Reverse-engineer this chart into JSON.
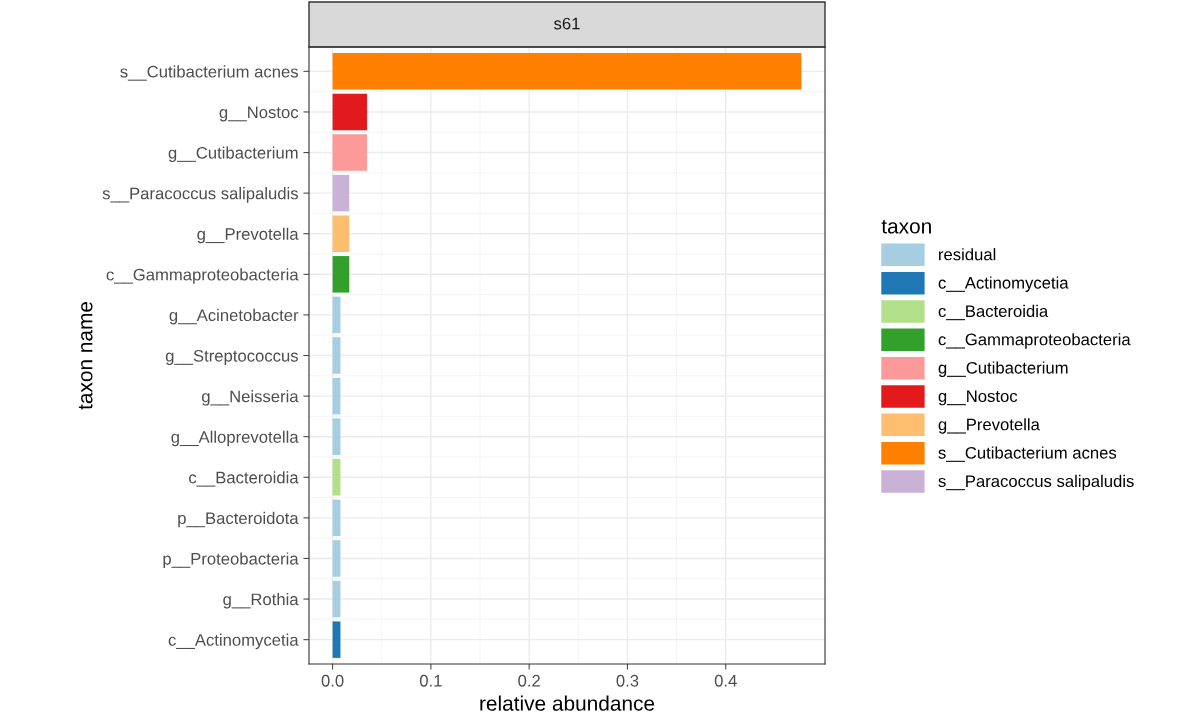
{
  "chart_data": {
    "type": "bar",
    "orientation": "horizontal",
    "title": "s61",
    "xlabel": "relative abundance",
    "ylabel": "taxon name",
    "legend_title": "taxon",
    "legend": "right",
    "grid": true,
    "categories": [
      "s__Cutibacterium acnes",
      "g__Nostoc",
      "g__Cutibacterium",
      "s__Paracoccus salipaludis",
      "g__Prevotella",
      "c__Gammaproteobacteria",
      "g__Acinetobacter",
      "g__Streptococcus",
      "g__Neisseria",
      "g__Alloprevotella",
      "c__Bacteroidia",
      "p__Bacteroidota",
      "p__Proteobacteria",
      "g__Rothia",
      "c__Actinomycetia"
    ],
    "xlim": [
      -0.024,
      0.501
    ],
    "xticks": [
      {
        "value": 0,
        "label": "0.0"
      },
      0.1,
      0.2,
      0.3,
      0.4
    ],
    "series": [
      {
        "name": "residual",
        "color": "#a6cee3",
        "values": [
          null,
          null,
          null,
          null,
          null,
          null,
          0.008,
          0.008,
          0.008,
          0.008,
          null,
          0.008,
          0.008,
          0.008,
          null
        ]
      },
      {
        "name": "c__Actinomycetia",
        "color": "#1f78b4",
        "values": [
          null,
          null,
          null,
          null,
          null,
          null,
          null,
          null,
          null,
          null,
          null,
          null,
          null,
          null,
          0.008
        ]
      },
      {
        "name": "c__Bacteroidia",
        "color": "#b2df8a",
        "values": [
          null,
          null,
          null,
          null,
          null,
          null,
          null,
          null,
          null,
          null,
          0.008,
          null,
          null,
          null,
          null
        ]
      },
      {
        "name": "c__Gammaproteobacteria",
        "color": "#33a02c",
        "values": [
          null,
          null,
          null,
          null,
          null,
          0.017,
          null,
          null,
          null,
          null,
          null,
          null,
          null,
          null,
          null
        ]
      },
      {
        "name": "g__Cutibacterium",
        "color": "#fb9a99",
        "values": [
          null,
          null,
          0.035,
          null,
          null,
          null,
          null,
          null,
          null,
          null,
          null,
          null,
          null,
          null,
          null
        ]
      },
      {
        "name": "g__Nostoc",
        "color": "#e31a1c",
        "values": [
          null,
          0.035,
          null,
          null,
          null,
          null,
          null,
          null,
          null,
          null,
          null,
          null,
          null,
          null,
          null
        ]
      },
      {
        "name": "g__Prevotella",
        "color": "#fdbf6f",
        "values": [
          null,
          null,
          null,
          null,
          0.017,
          null,
          null,
          null,
          null,
          null,
          null,
          null,
          null,
          null,
          null
        ]
      },
      {
        "name": "s__Cutibacterium acnes",
        "color": "#ff7f00",
        "values": [
          0.477,
          null,
          null,
          null,
          null,
          null,
          null,
          null,
          null,
          null,
          null,
          null,
          null,
          null,
          null
        ]
      },
      {
        "name": "s__Paracoccus salipaludis",
        "color": "#cab2d6",
        "values": [
          null,
          null,
          null,
          0.017,
          null,
          null,
          null,
          null,
          null,
          null,
          null,
          null,
          null,
          null,
          null
        ]
      }
    ]
  }
}
